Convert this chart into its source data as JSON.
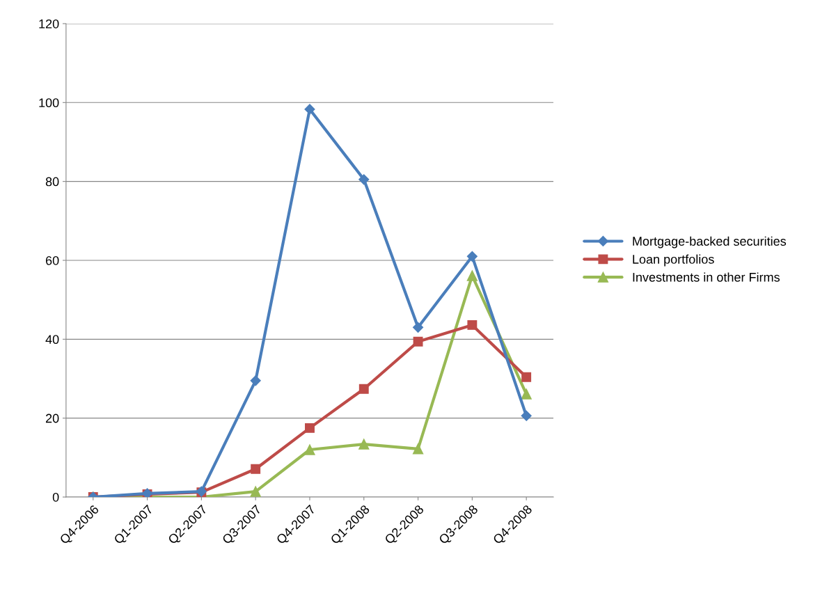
{
  "chart_data": {
    "type": "line",
    "categories": [
      "Q4-2006",
      "Q1-2007",
      "Q2-2007",
      "Q3-2007",
      "Q4-2007",
      "Q1-2008",
      "Q2-2008",
      "Q3-2008",
      "Q4-2008"
    ],
    "series": [
      {
        "name": "Mortgage-backed securities",
        "color": "#4a7ebb",
        "marker": "diamond",
        "values": [
          0,
          0.9,
          1.4,
          29.5,
          98.3,
          80.5,
          43,
          61,
          20.6
        ]
      },
      {
        "name": "Loan portfolios",
        "color": "#be4b48",
        "marker": "square",
        "values": [
          0,
          0.7,
          1.2,
          7.1,
          17.5,
          27.4,
          39.4,
          43.6,
          30.4
        ]
      },
      {
        "name": "Investments in other Firms",
        "color": "#98b954",
        "marker": "triangle",
        "values": [
          0,
          0,
          0,
          1.4,
          12,
          13.4,
          12.2,
          56.1,
          26.1
        ]
      }
    ],
    "ylim": [
      0,
      120
    ],
    "yticks": [
      0,
      20,
      40,
      60,
      80,
      100,
      120
    ],
    "grid": "y",
    "legend": "right"
  }
}
